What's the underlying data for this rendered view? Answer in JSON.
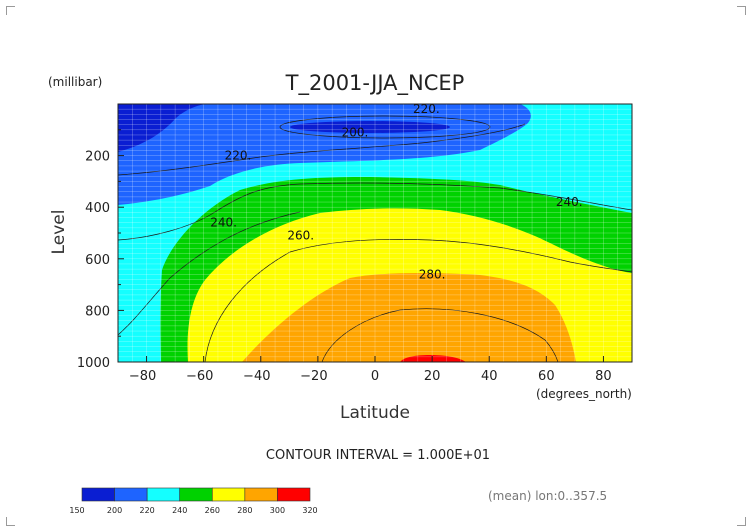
{
  "chart_data": {
    "type": "contour",
    "title": "T_2001-JJA_NCEP",
    "xlabel": "Latitude",
    "ylabel": "Level",
    "x_units": "(degrees_north)",
    "y_units": "(millibar)",
    "xlim": [
      -90,
      90
    ],
    "ylim": [
      1000,
      0
    ],
    "x_ticks": [
      -80,
      -60,
      -40,
      -20,
      0,
      20,
      40,
      60,
      80
    ],
    "y_ticks": [
      200,
      400,
      600,
      800,
      1000
    ],
    "grid": true,
    "contour_interval_text": "CONTOUR INTERVAL = 1.000E+01",
    "footer_text": "(mean) lon:0..357.5",
    "contour_labels": [
      {
        "text": "220.",
        "lat": 18,
        "level": 20
      },
      {
        "text": "200.",
        "lat": -7,
        "level": 110
      },
      {
        "text": "220.",
        "lat": -48,
        "level": 200
      },
      {
        "text": "240.",
        "lat": 68,
        "level": 380
      },
      {
        "text": "240.",
        "lat": -53,
        "level": 460
      },
      {
        "text": "260.",
        "lat": -26,
        "level": 510
      },
      {
        "text": "280.",
        "lat": 20,
        "level": 660
      }
    ],
    "colorbar": {
      "boundaries": [
        150,
        200,
        220,
        240,
        260,
        280,
        300,
        320
      ],
      "colors": [
        "#0a1ed2",
        "#1e64ff",
        "#14ffff",
        "#00d200",
        "#ffff00",
        "#ffa500",
        "#ff0000"
      ]
    },
    "colors": {
      "band_150_200": "#0a1ed2",
      "band_200_220": "#1e64ff",
      "band_220_240": "#14ffff",
      "band_240_260": "#00d200",
      "band_260_280": "#ffff00",
      "band_280_300": "#ffa500",
      "band_300_320": "#ff0000"
    }
  }
}
